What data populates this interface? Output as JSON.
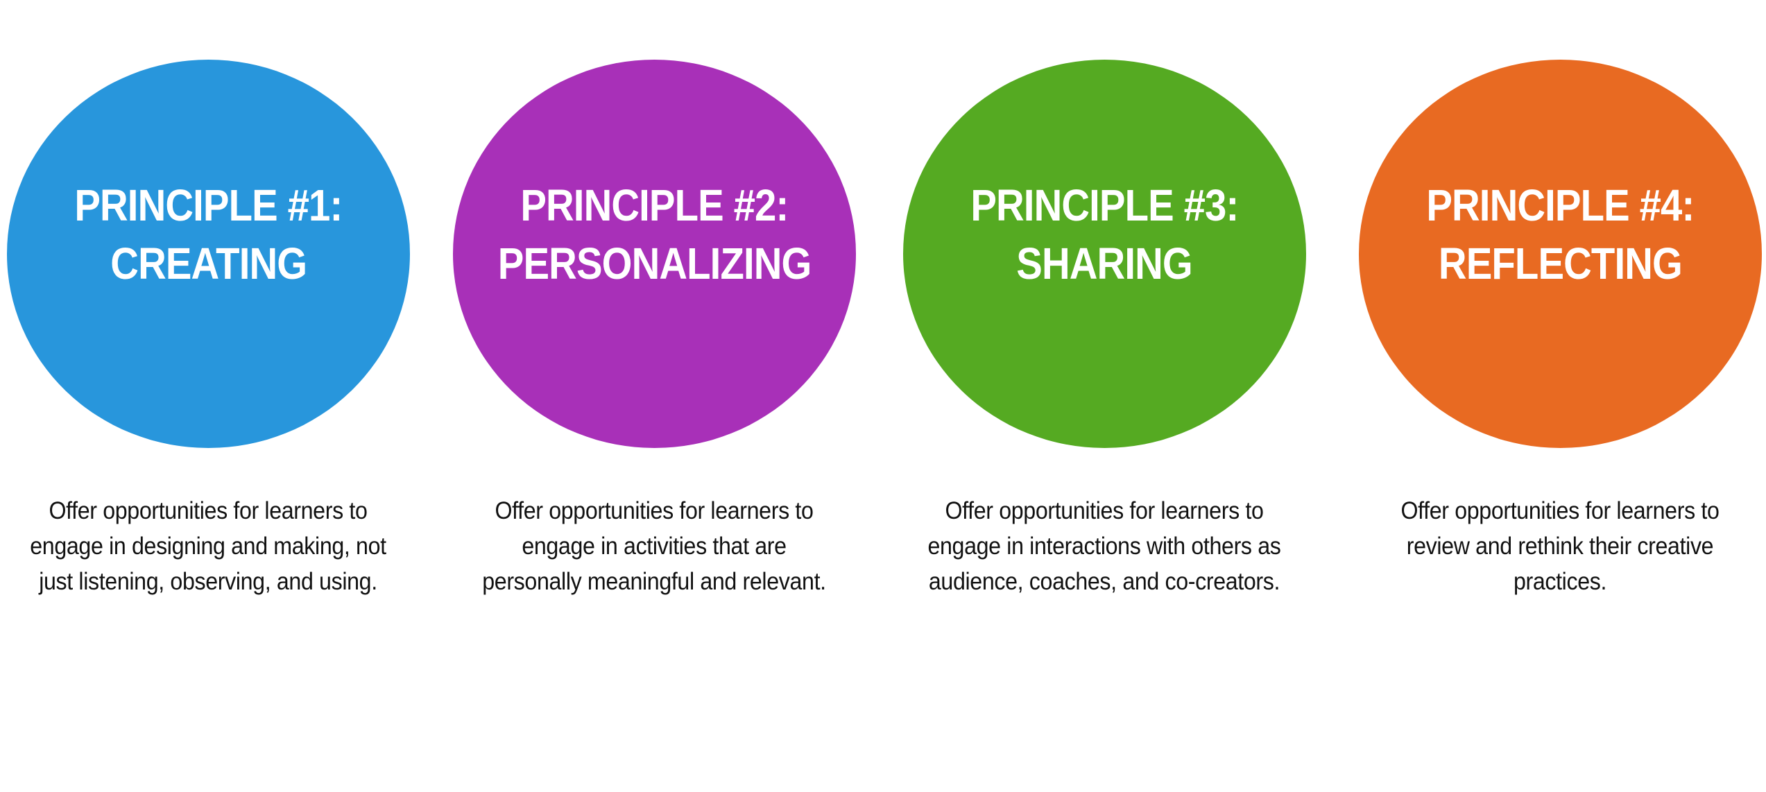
{
  "principles": [
    {
      "title_line1": "PRINCIPLE #1:",
      "title_line2": "CREATING",
      "color": "#2896DC",
      "description": "Offer opportunities for learners to engage in designing and making, not just listening, observing, and using."
    },
    {
      "title_line1": "PRINCIPLE #2:",
      "title_line2": "PERSONALIZING",
      "color": "#A830B8",
      "description": "Offer opportunities for learners to engage in activities that are personally meaningful and relevant."
    },
    {
      "title_line1": "PRINCIPLE #3:",
      "title_line2": "SHARING",
      "color": "#55AA22",
      "description": "Offer opportunities for learners to engage in interactions with others as audience, coaches, and co-creators."
    },
    {
      "title_line1": "PRINCIPLE #4:",
      "title_line2": "REFLECTING",
      "color": "#E86A22",
      "description": "Offer opportunities for learners to review and rethink their creative practices."
    }
  ]
}
